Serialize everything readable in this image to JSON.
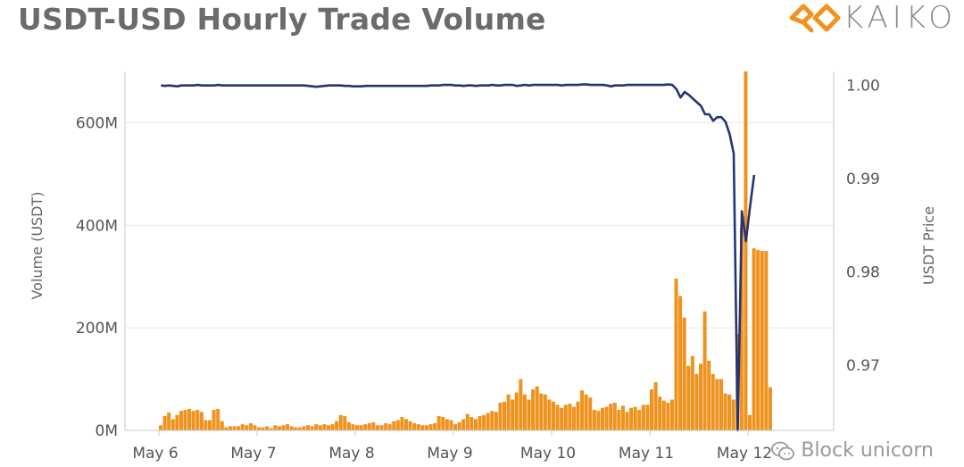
{
  "header": {
    "title": "USDT-USD Hourly Trade Volume",
    "logo_text": "KAIKO",
    "logo_icon": "kaiko-diamond-logo-icon"
  },
  "watermark": {
    "text": "Block unicorn",
    "icon": "wechat-icon"
  },
  "colors": {
    "bar": "#f0921e",
    "line": "#263473",
    "grid": "#e6e6e6",
    "axis": "#c8c8c8"
  },
  "chart_data": {
    "type": "bar",
    "title": "USDT-USD Hourly Trade Volume",
    "ylabel": "Volume (USDT)",
    "y2label": "USDT Price",
    "ylim": [
      0,
      700000000
    ],
    "y2lim": [
      0.963,
      1.0015
    ],
    "y_ticks": [
      0,
      200000000,
      400000000,
      600000000
    ],
    "y_tick_labels": [
      "0M",
      "200M",
      "400M",
      "600M"
    ],
    "y2_ticks": [
      0.97,
      0.98,
      0.99,
      1.0
    ],
    "y2_tick_labels": [
      "0.97",
      "0.98",
      "0.99",
      "1.00"
    ],
    "x_tick_labels": [
      "May 6",
      "May 7",
      "May 8",
      "May 9",
      "May 10",
      "May 11",
      "May 12"
    ],
    "x_tick_hours": [
      0,
      24,
      48,
      72,
      96,
      120,
      144
    ],
    "x_start_label": "May 6 00:00",
    "hour_step": 1,
    "grid": true,
    "series": [
      {
        "name": "Volume (USDT)",
        "type": "bar",
        "start_hour": 0,
        "values": [
          10,
          28,
          35,
          22,
          30,
          38,
          40,
          42,
          38,
          40,
          36,
          20,
          20,
          40,
          42,
          18,
          6,
          8,
          8,
          8,
          12,
          10,
          14,
          10,
          6,
          6,
          8,
          4,
          10,
          8,
          10,
          12,
          8,
          6,
          6,
          8,
          10,
          8,
          12,
          10,
          12,
          10,
          12,
          18,
          30,
          28,
          16,
          12,
          10,
          10,
          12,
          14,
          16,
          10,
          10,
          14,
          12,
          18,
          20,
          26,
          22,
          18,
          14,
          12,
          10,
          10,
          12,
          14,
          28,
          26,
          22,
          20,
          12,
          16,
          22,
          32,
          26,
          22,
          28,
          30,
          34,
          38,
          36,
          54,
          56,
          70,
          60,
          74,
          100,
          70,
          60,
          80,
          86,
          72,
          70,
          60,
          56,
          50,
          44,
          50,
          52,
          46,
          56,
          78,
          70,
          64,
          40,
          38,
          44,
          46,
          52,
          54,
          40,
          48,
          36,
          44,
          46,
          40,
          50,
          50,
          80,
          94,
          66,
          58,
          54,
          60,
          296,
          262,
          220,
          126,
          145,
          110,
          130,
          232,
          136,
          110,
          100,
          100,
          72,
          70,
          60,
          188,
          396,
          700,
          30,
          355,
          352,
          350,
          350,
          84
        ]
      },
      {
        "name": "USDT Price",
        "type": "line",
        "axis": "right",
        "start_hour": 0,
        "values": [
          1.0,
          0.99995,
          1.0,
          0.99995,
          0.9999,
          1.0,
          1.0,
          1.0,
          1.0,
          1.00005,
          1.0,
          1.0,
          1.0,
          1.0,
          1.00005,
          1.0,
          1.0,
          1.0,
          1.0,
          1.0,
          1.0,
          1.0,
          1.0,
          1.0,
          1.0,
          1.0,
          1.0,
          1.0,
          1.0,
          1.0,
          1.0,
          1.0,
          1.0,
          1.0,
          1.0,
          1.0,
          0.99995,
          0.9999,
          0.99985,
          0.9999,
          0.99995,
          1.0,
          1.0,
          1.0,
          1.0,
          0.99995,
          0.99995,
          0.9999,
          0.9999,
          0.9999,
          0.99995,
          0.99995,
          0.99995,
          0.99995,
          0.99995,
          0.99995,
          0.99995,
          0.99995,
          0.99995,
          0.99995,
          0.99995,
          0.99995,
          0.99995,
          0.99995,
          0.99995,
          0.99995,
          1.0,
          1.0,
          1.0,
          1.00005,
          1.00005,
          1.00005,
          1.0,
          1.0,
          0.99995,
          1.0,
          1.0,
          0.99995,
          1.0,
          1.0,
          1.0,
          1.00005,
          1.0,
          1.0,
          1.00005,
          1.00005,
          1.00005,
          0.99995,
          1.0,
          1.00005,
          1.0,
          1.00005,
          1.00005,
          1.00005,
          1.00005,
          1.00005,
          1.00005,
          1.00005,
          1.0,
          1.00005,
          1.00005,
          1.00005,
          1.00005,
          1.0001,
          1.0001,
          1.00005,
          1.00005,
          1.00005,
          1.00005,
          1.0,
          0.9999,
          1.0,
          1.0,
          1.0,
          1.00005,
          1.00005,
          1.00005,
          1.00005,
          1.00005,
          1.00005,
          1.00005,
          1.00005,
          1.00005,
          1.00005,
          1.0001,
          1.00005,
          0.9996,
          0.9987,
          0.9993,
          0.999,
          0.9986,
          0.9982,
          0.9978,
          0.9969,
          0.9969,
          0.9962,
          0.9966,
          0.9966,
          0.9961,
          0.9948,
          0.9927,
          0.963,
          0.9865,
          0.9833,
          0.987,
          0.9904
        ]
      }
    ]
  }
}
